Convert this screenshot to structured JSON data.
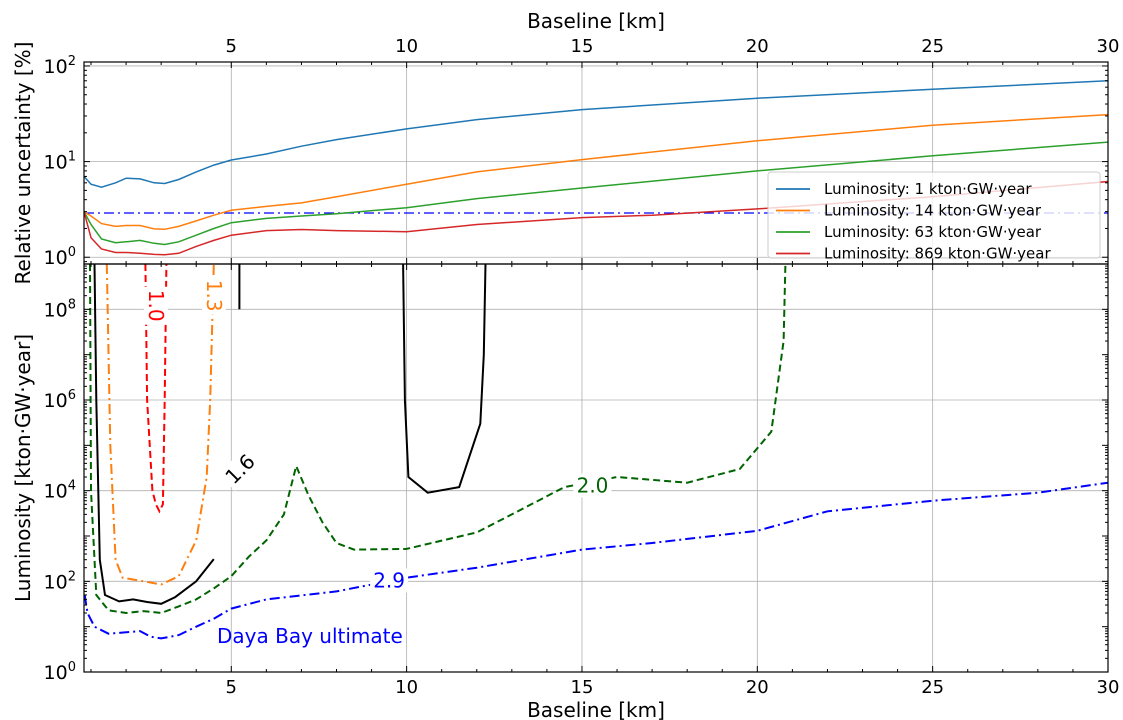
{
  "chart_data": [
    {
      "type": "line",
      "panel": "top",
      "xlabel": "Baseline [km]",
      "xlabel_position": "top",
      "ylabel": "Relative uncertainty [%]",
      "xlim": [
        0.8,
        30
      ],
      "ylim": [
        0.85,
        110
      ],
      "yscale": "log",
      "xticks": [
        5,
        10,
        15,
        20,
        25,
        30
      ],
      "yticks": [
        1,
        10,
        100
      ],
      "ytick_labels": [
        [
          "10",
          "0"
        ],
        [
          "10",
          "1"
        ],
        [
          "10",
          "2"
        ]
      ],
      "grid": true,
      "legend": "right",
      "reference_line": {
        "y": 2.9,
        "style": "dashdot",
        "color": "#0000ff"
      },
      "series": [
        {
          "name": "Luminosity: 1 kton·GW·year",
          "color": "#1f77b4",
          "x": [
            0.8,
            1.0,
            1.3,
            1.7,
            2.0,
            2.4,
            2.8,
            3.1,
            3.5,
            4.0,
            4.5,
            5.0,
            6.0,
            7.0,
            8.0,
            10.0,
            12.0,
            15.0,
            20.0,
            25.0,
            30.0
          ],
          "y": [
            7.0,
            5.8,
            5.4,
            6.0,
            6.7,
            6.6,
            6.0,
            5.9,
            6.5,
            7.8,
            9.2,
            10.4,
            12.0,
            14.5,
            17.0,
            22.0,
            27.5,
            35.0,
            46.0,
            57.0,
            70.0
          ]
        },
        {
          "name": "Luminosity: 14 kton·GW·year",
          "color": "#ff7f0e",
          "x": [
            0.8,
            1.0,
            1.3,
            1.7,
            2.0,
            2.4,
            2.8,
            3.1,
            3.5,
            4.0,
            4.5,
            5.0,
            6.0,
            7.0,
            8.0,
            10.0,
            12.0,
            15.0,
            20.0,
            25.0,
            30.0
          ],
          "y": [
            3.0,
            2.7,
            2.25,
            2.1,
            2.15,
            2.15,
            1.98,
            1.96,
            2.1,
            2.4,
            2.75,
            3.1,
            3.4,
            3.7,
            4.3,
            5.8,
            7.8,
            10.5,
            16.5,
            24.0,
            31.0
          ]
        },
        {
          "name": "Luminosity: 63 kton·GW·year",
          "color": "#2ca02c",
          "x": [
            0.8,
            1.0,
            1.3,
            1.7,
            2.0,
            2.4,
            2.8,
            3.1,
            3.5,
            4.0,
            4.5,
            5.0,
            6.0,
            7.0,
            8.0,
            10.0,
            12.0,
            15.0,
            20.0,
            25.0,
            30.0
          ],
          "y": [
            3.0,
            2.2,
            1.55,
            1.42,
            1.45,
            1.5,
            1.4,
            1.36,
            1.45,
            1.7,
            2.0,
            2.3,
            2.55,
            2.7,
            2.85,
            3.3,
            4.1,
            5.3,
            8.0,
            11.5,
            16.0
          ]
        },
        {
          "name": "Luminosity: 869 kton·GW·year",
          "color": "#d62728",
          "x": [
            0.8,
            1.0,
            1.3,
            1.7,
            2.0,
            2.4,
            2.8,
            3.1,
            3.5,
            4.0,
            4.5,
            5.0,
            6.0,
            7.0,
            8.0,
            10.0,
            12.0,
            15.0,
            17.0,
            20.0,
            25.0,
            30.0
          ],
          "y": [
            3.0,
            1.6,
            1.22,
            1.12,
            1.12,
            1.1,
            1.07,
            1.06,
            1.1,
            1.3,
            1.5,
            1.7,
            1.9,
            1.95,
            1.9,
            1.85,
            2.2,
            2.6,
            2.75,
            3.2,
            4.3,
            6.2
          ]
        }
      ]
    },
    {
      "type": "contour",
      "panel": "bottom",
      "xlabel": "Baseline [km]",
      "ylabel": "Luminosity [kton·GW·year]",
      "xlim": [
        0.8,
        30
      ],
      "ylim": [
        1,
        1000000000
      ],
      "yscale": "log",
      "xticks": [
        5,
        10,
        15,
        20,
        25,
        30
      ],
      "yticks": [
        1,
        100,
        10000,
        1000000,
        100000000
      ],
      "ytick_labels": [
        [
          "10",
          "0"
        ],
        [
          "10",
          "2"
        ],
        [
          "10",
          "4"
        ],
        [
          "10",
          "6"
        ],
        [
          "10",
          "8"
        ]
      ],
      "grid": true,
      "annotation": "Daya Bay ultimate",
      "contours": [
        {
          "level": "1.0",
          "color": "#ff0000",
          "style": "dashed",
          "label_at": [
            2.85,
            120000000.0
          ],
          "label_rotation": 90,
          "segments": [
            [
              [
                2.55,
                1000000000.0
              ],
              [
                2.6,
                1000000.0
              ],
              [
                2.75,
                10000.0
              ],
              [
                2.85,
                5000
              ],
              [
                2.95,
                3500
              ],
              [
                3.05,
                5000
              ],
              [
                3.1,
                1000000.0
              ],
              [
                3.15,
                1000000000.0
              ]
            ]
          ]
        },
        {
          "level": "1.3",
          "color": "#ff7f0e",
          "style": "dashdot",
          "label_at": [
            4.5,
            200000000.0
          ],
          "label_rotation": 90,
          "segments": [
            [
              [
                1.45,
                1000000000.0
              ],
              [
                1.55,
                100000.0
              ],
              [
                1.7,
                300
              ],
              [
                1.9,
                120
              ],
              [
                2.5,
                100
              ],
              [
                3.0,
                85
              ],
              [
                3.5,
                130
              ],
              [
                4.0,
                800
              ],
              [
                4.3,
                20000.0
              ],
              [
                4.4,
                1000000.0
              ],
              [
                4.5,
                1000000000.0
              ]
            ]
          ]
        },
        {
          "level": "1.6",
          "color": "#000000",
          "style": "solid",
          "label_at": [
            5.25,
            30000.0
          ],
          "label_rotation": -45,
          "segments": [
            [
              [
                1.1,
                1000000000.0
              ],
              [
                1.15,
                1000000.0
              ],
              [
                1.25,
                300
              ],
              [
                1.4,
                50
              ],
              [
                1.8,
                36
              ],
              [
                2.2,
                40
              ],
              [
                2.6,
                35
              ],
              [
                3.0,
                32
              ],
              [
                3.4,
                45
              ],
              [
                4.0,
                100
              ],
              [
                4.5,
                310
              ]
            ],
            [
              [
                5.23,
                1000000000.0
              ],
              [
                5.23,
                100000000.0
              ]
            ],
            [
              [
                9.9,
                1000000000.0
              ],
              [
                9.95,
                1000000.0
              ],
              [
                10.05,
                20000.0
              ],
              [
                10.6,
                9000
              ],
              [
                11.5,
                12000.0
              ],
              [
                12.1,
                300000.0
              ],
              [
                12.2,
                10000000.0
              ],
              [
                12.25,
                1000000000.0
              ]
            ]
          ]
        },
        {
          "level": "2.0",
          "color": "#006400",
          "style": "dashed",
          "label_at": [
            15.3,
            13000.0
          ],
          "label_rotation": 0,
          "segments": [
            [
              [
                0.97,
                1000000000.0
              ],
              [
                1.0,
                10000.0
              ],
              [
                1.15,
                50
              ],
              [
                1.5,
                23
              ],
              [
                2.0,
                20
              ],
              [
                2.5,
                22
              ],
              [
                3.0,
                20
              ],
              [
                3.5,
                28
              ],
              [
                4.0,
                40
              ],
              [
                4.5,
                70
              ],
              [
                5.0,
                130
              ],
              [
                5.5,
                350
              ],
              [
                6.0,
                800
              ],
              [
                6.5,
                3000
              ],
              [
                6.85,
                35000.0
              ],
              [
                7.2,
                8000
              ],
              [
                7.6,
                2000
              ],
              [
                8.0,
                700
              ],
              [
                8.5,
                500
              ],
              [
                10.0,
                520
              ],
              [
                12.0,
                1200
              ],
              [
                13.0,
                3000
              ],
              [
                14.5,
                12000.0
              ],
              [
                16.0,
                20000.0
              ],
              [
                18.0,
                15000.0
              ],
              [
                19.5,
                30000.0
              ],
              [
                20.4,
                200000.0
              ],
              [
                20.75,
                20000000.0
              ],
              [
                20.8,
                1000000000.0
              ]
            ]
          ]
        },
        {
          "level": "2.9",
          "color": "#0000ff",
          "style": "dashdot",
          "label_at": [
            9.5,
            105
          ],
          "label_rotation": 0,
          "segments": [
            [
              [
                0.82,
                50
              ],
              [
                0.9,
                20
              ],
              [
                1.1,
                10
              ],
              [
                1.5,
                7
              ],
              [
                2.0,
                7.5
              ],
              [
                2.4,
                8
              ],
              [
                2.7,
                6
              ],
              [
                3.0,
                5.5
              ],
              [
                3.5,
                6.5
              ],
              [
                4.0,
                10
              ],
              [
                4.5,
                15
              ],
              [
                5.0,
                25
              ],
              [
                6.0,
                40
              ],
              [
                8.0,
                60
              ],
              [
                10.0,
                120
              ],
              [
                12.0,
                200
              ],
              [
                15.0,
                500
              ],
              [
                17.0,
                700
              ],
              [
                20.0,
                1300
              ],
              [
                22.0,
                3500
              ],
              [
                25.0,
                6000
              ],
              [
                28.0,
                9000
              ],
              [
                30.0,
                15000.0
              ]
            ]
          ]
        }
      ]
    }
  ]
}
